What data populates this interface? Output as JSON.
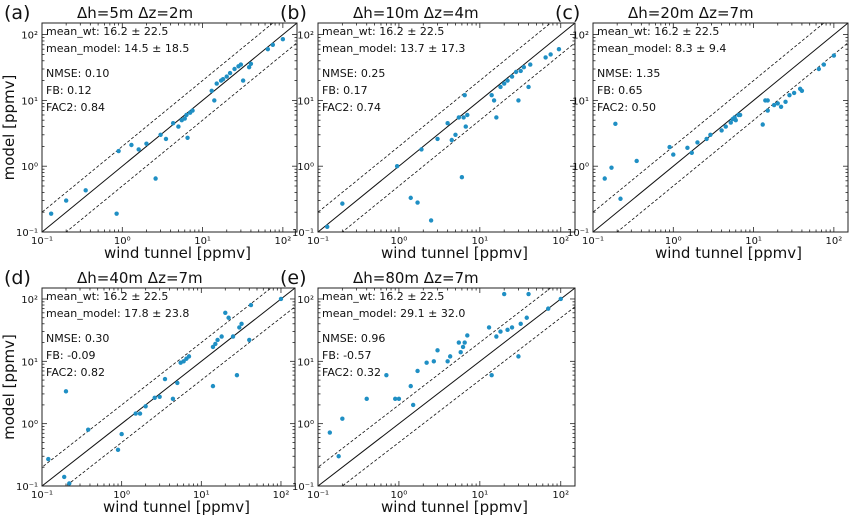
{
  "chart_data": [
    {
      "type": "scatter",
      "panel_label": "(a)",
      "title": "Δh=5m Δz=2m",
      "xlabel": "wind tunnel   [ppmv]",
      "ylabel": "model   [ppmv]",
      "xscale": "log",
      "yscale": "log",
      "xlim": [
        0.1,
        150
      ],
      "ylim": [
        0.1,
        150
      ],
      "xticks": [
        {
          "value": 0.1,
          "label": "10⁻¹"
        },
        {
          "value": 1,
          "label": "10⁰"
        },
        {
          "value": 10,
          "label": "10¹"
        },
        {
          "value": 100,
          "label": "10²"
        }
      ],
      "yticks": [
        {
          "value": 0.1,
          "label": "10⁻¹"
        },
        {
          "value": 1,
          "label": "10⁰"
        },
        {
          "value": 10,
          "label": "10¹"
        },
        {
          "value": 100,
          "label": "10²"
        }
      ],
      "reference_lines": [
        "1:1",
        "factor of 2"
      ],
      "stats": [
        "mean_wt: 16.2 ± 22.5",
        "mean_model: 14.5 ± 18.5",
        "NMSE: 0.10",
        "FB: 0.12",
        "FAC2: 0.84"
      ],
      "points": [
        [
          0.13,
          0.19
        ],
        [
          0.2,
          0.3
        ],
        [
          0.35,
          0.43
        ],
        [
          0.85,
          0.19
        ],
        [
          0.9,
          1.7
        ],
        [
          1.3,
          2.1
        ],
        [
          1.6,
          1.8
        ],
        [
          2.0,
          2.2
        ],
        [
          2.6,
          0.65
        ],
        [
          3.0,
          3.0
        ],
        [
          3.5,
          2.6
        ],
        [
          4.3,
          4.5
        ],
        [
          5.0,
          4.0
        ],
        [
          5.5,
          5.0
        ],
        [
          6.0,
          5.3
        ],
        [
          6.3,
          6.0
        ],
        [
          6.5,
          2.7
        ],
        [
          7.0,
          6.5
        ],
        [
          7.5,
          7.0
        ],
        [
          13,
          14
        ],
        [
          14,
          10
        ],
        [
          15,
          18
        ],
        [
          17,
          20
        ],
        [
          18,
          21
        ],
        [
          20,
          23
        ],
        [
          22,
          26
        ],
        [
          25,
          30
        ],
        [
          28,
          33
        ],
        [
          30,
          35
        ],
        [
          32,
          20
        ],
        [
          38,
          32
        ],
        [
          40,
          36
        ],
        [
          65,
          60
        ],
        [
          75,
          70
        ],
        [
          100,
          85
        ]
      ]
    },
    {
      "type": "scatter",
      "panel_label": "(b)",
      "title": "Δh=10m Δz=4m",
      "xlabel": "wind tunnel   [ppmv]",
      "xscale": "log",
      "yscale": "log",
      "xlim": [
        0.1,
        150
      ],
      "ylim": [
        0.1,
        150
      ],
      "xticks": [
        {
          "value": 0.1,
          "label": "10⁻¹"
        },
        {
          "value": 1,
          "label": "10⁰"
        },
        {
          "value": 10,
          "label": "10¹"
        },
        {
          "value": 100,
          "label": "10²"
        }
      ],
      "yticks": [
        {
          "value": 0.1,
          "label": "10⁻¹"
        },
        {
          "value": 1,
          "label": "10⁰"
        },
        {
          "value": 10,
          "label": "10¹"
        },
        {
          "value": 100,
          "label": "10²"
        }
      ],
      "reference_lines": [
        "1:1",
        "factor of 2"
      ],
      "stats": [
        "mean_wt: 16.2 ± 22.5",
        "mean_model: 13.7 ± 17.3",
        "NMSE: 0.25",
        "FB: 0.17",
        "FAC2: 0.74"
      ],
      "points": [
        [
          0.13,
          0.12
        ],
        [
          0.2,
          0.27
        ],
        [
          0.95,
          1.0
        ],
        [
          1.4,
          0.33
        ],
        [
          1.7,
          0.28
        ],
        [
          1.9,
          1.8
        ],
        [
          2.5,
          0.15
        ],
        [
          3.0,
          2.6
        ],
        [
          4.0,
          4.5
        ],
        [
          4.5,
          2.5
        ],
        [
          5.0,
          3.0
        ],
        [
          5.5,
          5.5
        ],
        [
          6.0,
          0.68
        ],
        [
          6.3,
          5.5
        ],
        [
          6.7,
          4.0
        ],
        [
          7.0,
          6.0
        ],
        [
          6.5,
          12
        ],
        [
          14,
          12
        ],
        [
          15,
          10
        ],
        [
          16,
          5.5
        ],
        [
          18,
          16
        ],
        [
          20,
          18
        ],
        [
          22,
          20
        ],
        [
          25,
          23
        ],
        [
          28,
          27
        ],
        [
          30,
          10
        ],
        [
          32,
          28
        ],
        [
          35,
          32
        ],
        [
          40,
          16
        ],
        [
          42,
          35
        ],
        [
          65,
          45
        ],
        [
          75,
          50
        ],
        [
          95,
          60
        ]
      ]
    },
    {
      "type": "scatter",
      "panel_label": "(c)",
      "title": "Δh=20m Δz=7m",
      "xlabel": "wind tunnel   [ppmv]",
      "xscale": "log",
      "yscale": "log",
      "xlim": [
        0.1,
        150
      ],
      "ylim": [
        0.1,
        150
      ],
      "xticks": [
        {
          "value": 0.1,
          "label": "10⁻¹"
        },
        {
          "value": 1,
          "label": "10⁰"
        },
        {
          "value": 10,
          "label": "10¹"
        },
        {
          "value": 100,
          "label": "10²"
        }
      ],
      "yticks": [
        {
          "value": 0.1,
          "label": "10⁻¹"
        },
        {
          "value": 1,
          "label": "10⁰"
        },
        {
          "value": 10,
          "label": "10¹"
        },
        {
          "value": 100,
          "label": "10²"
        }
      ],
      "reference_lines": [
        "1:1",
        "factor of 2"
      ],
      "stats": [
        "mean_wt: 16.2 ± 22.5",
        "mean_model: 8.3 ± 9.4",
        "NMSE: 1.35",
        "FB: 0.65",
        "FAC2: 0.50"
      ],
      "points": [
        [
          0.14,
          0.65
        ],
        [
          0.17,
          0.95
        ],
        [
          0.19,
          4.4
        ],
        [
          0.22,
          0.32
        ],
        [
          0.35,
          1.2
        ],
        [
          0.9,
          1.95
        ],
        [
          1.0,
          1.5
        ],
        [
          1.5,
          1.9
        ],
        [
          1.7,
          1.6
        ],
        [
          2.0,
          2.3
        ],
        [
          2.6,
          2.6
        ],
        [
          2.9,
          3.0
        ],
        [
          4.0,
          3.5
        ],
        [
          4.5,
          4.0
        ],
        [
          5.2,
          4.6
        ],
        [
          5.5,
          5.2
        ],
        [
          5.8,
          5.5
        ],
        [
          6.0,
          5.0
        ],
        [
          6.5,
          6.0
        ],
        [
          6.8,
          6.0
        ],
        [
          13,
          4.3
        ],
        [
          14,
          10
        ],
        [
          15,
          10
        ],
        [
          15,
          7.0
        ],
        [
          18,
          8.5
        ],
        [
          20,
          9.0
        ],
        [
          22,
          8.0
        ],
        [
          25,
          9.5
        ],
        [
          28,
          12
        ],
        [
          32,
          13
        ],
        [
          38,
          15
        ],
        [
          40,
          14
        ],
        [
          65,
          30
        ],
        [
          75,
          35
        ],
        [
          100,
          48
        ]
      ]
    },
    {
      "type": "scatter",
      "panel_label": "(d)",
      "title": "Δh=40m Δz=7m",
      "xlabel": "wind tunnel   [ppmv]",
      "ylabel": "model   [ppmv]",
      "xscale": "log",
      "yscale": "log",
      "xlim": [
        0.1,
        150
      ],
      "ylim": [
        0.1,
        150
      ],
      "xticks": [
        {
          "value": 0.1,
          "label": "10⁻¹"
        },
        {
          "value": 1,
          "label": "10⁰"
        },
        {
          "value": 10,
          "label": "10¹"
        },
        {
          "value": 100,
          "label": "10²"
        }
      ],
      "yticks": [
        {
          "value": 0.1,
          "label": "10⁻¹"
        },
        {
          "value": 1,
          "label": "10⁰"
        },
        {
          "value": 10,
          "label": "10¹"
        },
        {
          "value": 100,
          "label": "10²"
        }
      ],
      "reference_lines": [
        "1:1",
        "factor of 2"
      ],
      "stats": [
        "mean_wt: 16.2 ± 22.5",
        "mean_model: 17.8 ± 23.8",
        "NMSE: 0.30",
        "FB: -0.09",
        "FAC2: 0.82"
      ],
      "points": [
        [
          0.12,
          0.27
        ],
        [
          0.19,
          0.14
        ],
        [
          0.2,
          3.3
        ],
        [
          0.22,
          0.11
        ],
        [
          0.38,
          0.8
        ],
        [
          0.9,
          0.38
        ],
        [
          1.0,
          0.68
        ],
        [
          1.5,
          1.45
        ],
        [
          1.7,
          1.45
        ],
        [
          2.0,
          1.9
        ],
        [
          2.6,
          2.6
        ],
        [
          3.0,
          2.7
        ],
        [
          3.5,
          5.2
        ],
        [
          4.4,
          2.5
        ],
        [
          5.0,
          4.5
        ],
        [
          5.5,
          9.5
        ],
        [
          6.0,
          10
        ],
        [
          6.5,
          11
        ],
        [
          7.0,
          12
        ],
        [
          14,
          4.0
        ],
        [
          14,
          17
        ],
        [
          15,
          19
        ],
        [
          16,
          22
        ],
        [
          18,
          25
        ],
        [
          20,
          60
        ],
        [
          22,
          50
        ],
        [
          25,
          25
        ],
        [
          28,
          6.0
        ],
        [
          30,
          35
        ],
        [
          32,
          40
        ],
        [
          40,
          22
        ],
        [
          42,
          80
        ],
        [
          100,
          100
        ]
      ]
    },
    {
      "type": "scatter",
      "panel_label": "(e)",
      "title": "Δh=80m Δz=7m",
      "xlabel": "wind tunnel   [ppmv]",
      "xscale": "log",
      "yscale": "log",
      "xlim": [
        0.1,
        150
      ],
      "ylim": [
        0.1,
        150
      ],
      "xticks": [
        {
          "value": 0.1,
          "label": "10⁻¹"
        },
        {
          "value": 1,
          "label": "10⁰"
        },
        {
          "value": 10,
          "label": "10¹"
        },
        {
          "value": 100,
          "label": "10²"
        }
      ],
      "yticks": [
        {
          "value": 0.1,
          "label": "10⁻¹"
        },
        {
          "value": 1,
          "label": "10⁰"
        },
        {
          "value": 10,
          "label": "10¹"
        },
        {
          "value": 100,
          "label": "10²"
        }
      ],
      "reference_lines": [
        "1:1",
        "factor of 2"
      ],
      "stats": [
        "mean_wt: 16.2 ± 22.5",
        "mean_model: 29.1 ± 32.0",
        "NMSE: 0.96",
        "FB: -0.57",
        "FAC2: 0.32"
      ],
      "points": [
        [
          0.14,
          0.72
        ],
        [
          0.18,
          0.3
        ],
        [
          0.2,
          1.2
        ],
        [
          0.4,
          2.5
        ],
        [
          0.7,
          6.0
        ],
        [
          0.9,
          2.5
        ],
        [
          1.0,
          2.5
        ],
        [
          1.4,
          4.0
        ],
        [
          1.5,
          2.0
        ],
        [
          1.7,
          7.0
        ],
        [
          2.2,
          9.5
        ],
        [
          2.7,
          10
        ],
        [
          3.0,
          15
        ],
        [
          4.0,
          10
        ],
        [
          4.3,
          12
        ],
        [
          5.5,
          20
        ],
        [
          5.8,
          14
        ],
        [
          6.2,
          17
        ],
        [
          6.5,
          20
        ],
        [
          7.0,
          26
        ],
        [
          13,
          35
        ],
        [
          14,
          6.0
        ],
        [
          16,
          25
        ],
        [
          18,
          30
        ],
        [
          20,
          120
        ],
        [
          22,
          32
        ],
        [
          25,
          35
        ],
        [
          30,
          12
        ],
        [
          32,
          40
        ],
        [
          38,
          50
        ],
        [
          40,
          120
        ],
        [
          70,
          70
        ],
        [
          100,
          100
        ]
      ]
    }
  ]
}
